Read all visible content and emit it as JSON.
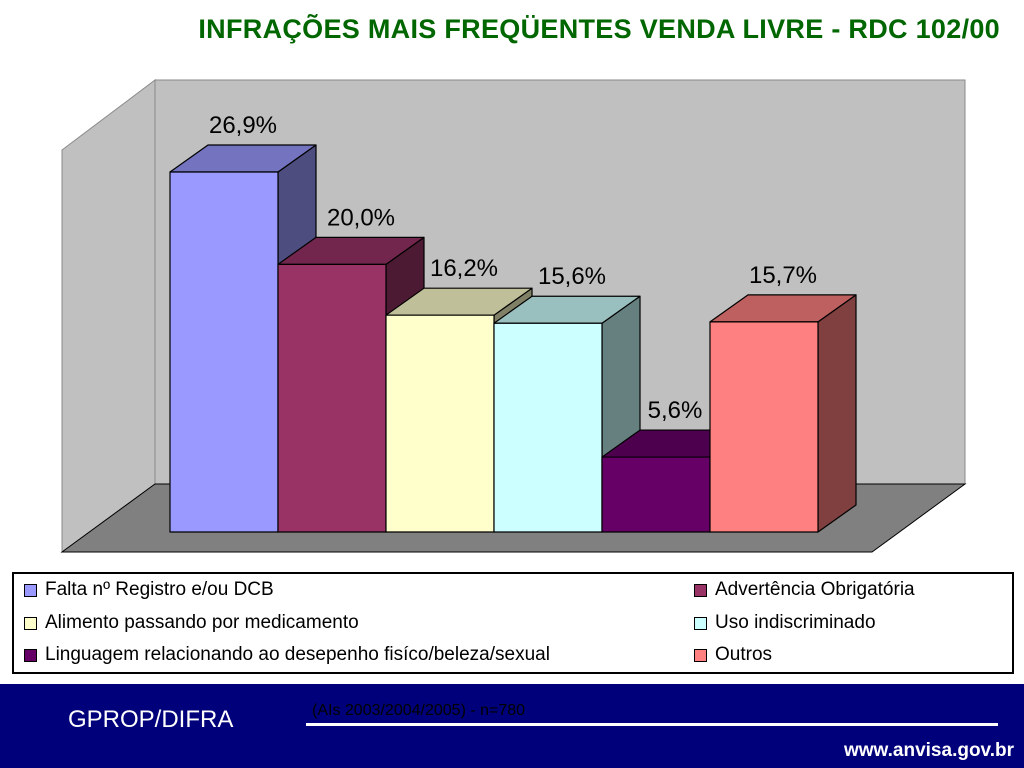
{
  "title": "INFRAÇÕES MAIS FREQÜENTES VENDA LIVRE  -  RDC 102/00",
  "chart_data": {
    "type": "bar",
    "style": "3d-clustered",
    "grid": false,
    "legend_placement": "bottom",
    "ylim": [
      0,
      30
    ],
    "series": [
      {
        "name": "Falta nº Registro e/ou DCB",
        "value": 26.9,
        "label": "26,9%",
        "color": "#9999ff"
      },
      {
        "name": "Advertência Obrigatória",
        "value": 20.0,
        "label": "20,0%",
        "color": "#993366"
      },
      {
        "name": "Alimento passando por medicamento",
        "value": 16.2,
        "label": "16,2%",
        "color": "#ffffcc"
      },
      {
        "name": "Uso indiscriminado",
        "value": 15.6,
        "label": "15,6%",
        "color": "#ccffff"
      },
      {
        "name": "Linguagem relacionando ao desepenho fisíco/beleza/sexual",
        "value": 5.6,
        "label": "5,6%",
        "color": "#660066"
      },
      {
        "name": "Outros",
        "value": 15.7,
        "label": "15,7%",
        "color": "#ff8080"
      }
    ]
  },
  "footer": {
    "org": "GPROP/DIFRA",
    "note": "(AIs 2003/2004/2005) - n=780",
    "url": "www.anvisa.gov.br"
  }
}
